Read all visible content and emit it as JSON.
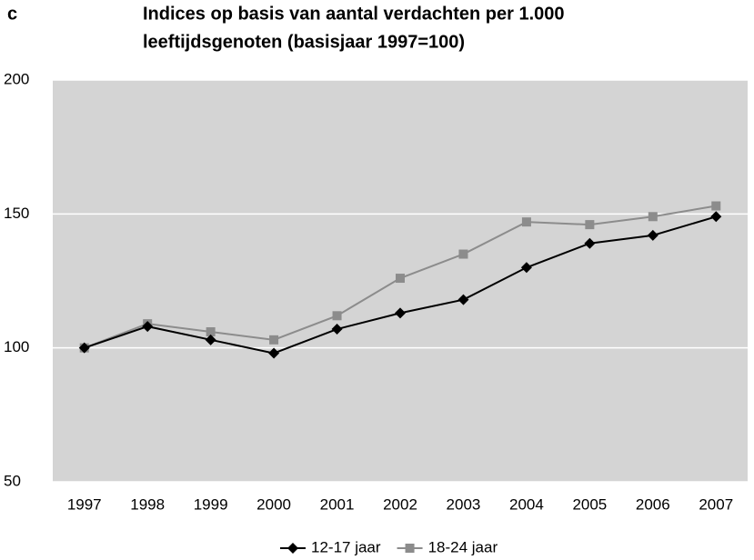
{
  "chart_data": {
    "type": "line",
    "panel_label": "c",
    "title": [
      "Indices op basis van aantal verdachten per 1.000",
      "leeftijdsgenoten (basisjaar 1997=100)"
    ],
    "categories": [
      "1997",
      "1998",
      "1999",
      "2000",
      "2001",
      "2002",
      "2003",
      "2004",
      "2005",
      "2006",
      "2007"
    ],
    "series": [
      {
        "name": "12-17 jaar",
        "color": "#000000",
        "marker": "diamond",
        "values": [
          100,
          108,
          103,
          98,
          107,
          113,
          118,
          130,
          139,
          142,
          149
        ]
      },
      {
        "name": "18-24 jaar",
        "color": "#8c8c8c",
        "marker": "square",
        "values": [
          100,
          109,
          106,
          103,
          112,
          126,
          135,
          147,
          146,
          149,
          153
        ]
      }
    ],
    "ylim": [
      50,
      200
    ],
    "yticks": [
      50,
      100,
      150,
      200
    ],
    "grid": true,
    "plot_background": "#d4d4d4",
    "legend": "bottom"
  }
}
